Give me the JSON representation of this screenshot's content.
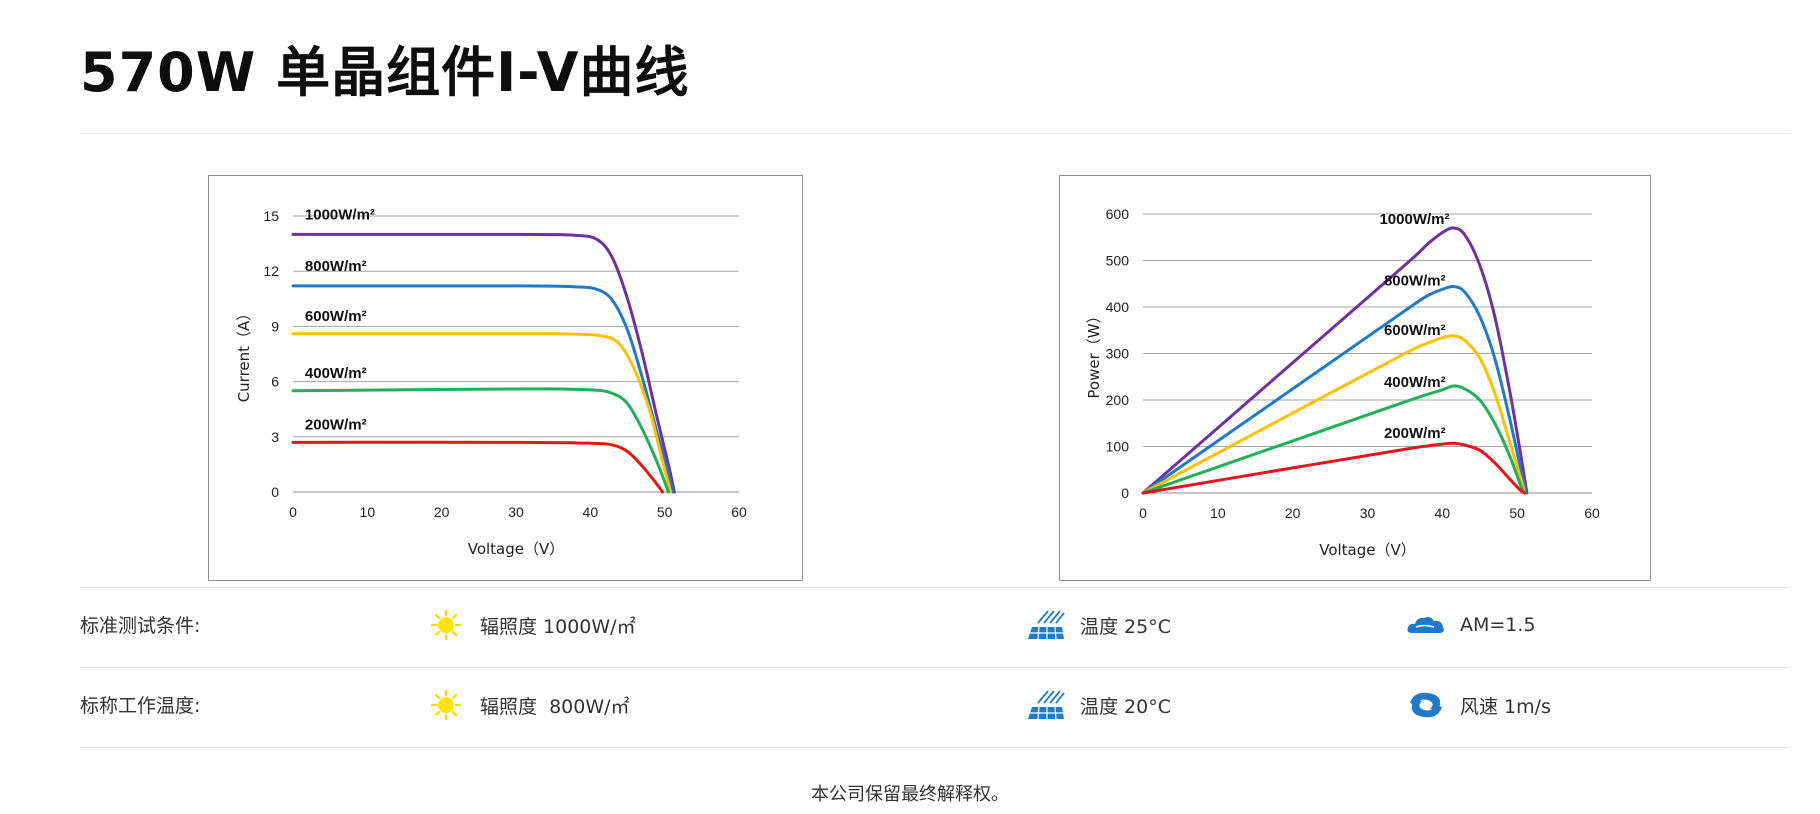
{
  "page": {
    "title": "570W 单晶组件I-V曲线",
    "footer": "本公司保留最终解释权。"
  },
  "conditions": [
    {
      "label": "标准测试条件:",
      "irradiance": "辐照度 1000W/㎡",
      "temperature": "温度 25°C",
      "third": "AM=1.5",
      "third_icon": "cloud-icon"
    },
    {
      "label": "标称工作温度:",
      "irradiance": "辐照度  800W/㎡",
      "temperature": "温度 20°C",
      "third": "风速 1m/s",
      "third_icon": "wind-icon"
    }
  ],
  "icons": {
    "irradiance": "sun-icon",
    "temperature": "solar-panel-icon"
  },
  "colors": {
    "1000W/m²": "#7030a0",
    "800W/m²": "#1f7ac9",
    "600W/m²": "#ffc000",
    "400W/m²": "#1fb058",
    "200W/m²": "#e8141a"
  },
  "chart_data": [
    {
      "type": "line",
      "xlabel": "Voltage（V）",
      "ylabel": "Current（A）",
      "xlim": [
        0,
        60
      ],
      "ylim": [
        0,
        15
      ],
      "xticks": [
        0,
        10,
        20,
        30,
        40,
        50,
        60
      ],
      "yticks": [
        0,
        3,
        6,
        9,
        12,
        15
      ],
      "grid": "horizontal",
      "series": [
        {
          "name": "1000W/m²",
          "points": [
            [
              0,
              14.0
            ],
            [
              30,
              14.0
            ],
            [
              38,
              13.95
            ],
            [
              41,
              13.7
            ],
            [
              43,
              12.7
            ],
            [
              45,
              10.5
            ],
            [
              47,
              7.5
            ],
            [
              49,
              4.0
            ],
            [
              50.5,
              1.5
            ],
            [
              51.3,
              0
            ]
          ]
        },
        {
          "name": "800W/m²",
          "points": [
            [
              0,
              11.2
            ],
            [
              30,
              11.2
            ],
            [
              38,
              11.15
            ],
            [
              41,
              11.0
            ],
            [
              43,
              10.4
            ],
            [
              45,
              8.8
            ],
            [
              47,
              6.2
            ],
            [
              49,
              3.2
            ],
            [
              50.5,
              1.0
            ],
            [
              51.1,
              0
            ]
          ]
        },
        {
          "name": "600W/m²",
          "points": [
            [
              0,
              8.6
            ],
            [
              30,
              8.6
            ],
            [
              38,
              8.58
            ],
            [
              42,
              8.45
            ],
            [
              44,
              8.0
            ],
            [
              46,
              6.6
            ],
            [
              48,
              4.4
            ],
            [
              49.5,
              2.0
            ],
            [
              50.8,
              0
            ]
          ]
        },
        {
          "name": "400W/m²",
          "points": [
            [
              0,
              5.5
            ],
            [
              30,
              5.6
            ],
            [
              40,
              5.55
            ],
            [
              43,
              5.35
            ],
            [
              45,
              4.8
            ],
            [
              47,
              3.4
            ],
            [
              49,
              1.6
            ],
            [
              50.5,
              0
            ]
          ]
        },
        {
          "name": "200W/m²",
          "points": [
            [
              0,
              2.7
            ],
            [
              30,
              2.7
            ],
            [
              40,
              2.65
            ],
            [
              43,
              2.55
            ],
            [
              45,
              2.2
            ],
            [
              47,
              1.4
            ],
            [
              49,
              0.4
            ],
            [
              49.7,
              0
            ]
          ]
        }
      ],
      "annotations": [
        {
          "text": "1000W/m²",
          "x": 1.6,
          "y": 14.8
        },
        {
          "text": "800W/m²",
          "x": 1.6,
          "y": 12.0
        },
        {
          "text": "600W/m²",
          "x": 1.6,
          "y": 9.3
        },
        {
          "text": "400W/m²",
          "x": 1.6,
          "y": 6.2
        },
        {
          "text": "200W/m²",
          "x": 1.6,
          "y": 3.4
        }
      ]
    },
    {
      "type": "line",
      "xlabel": "Voltage（V）",
      "ylabel": "Power（W）",
      "xlim": [
        0,
        60
      ],
      "ylim": [
        0,
        600
      ],
      "xticks": [
        0,
        10,
        20,
        30,
        40,
        50,
        60
      ],
      "yticks": [
        0,
        100,
        200,
        300,
        400,
        500,
        600
      ],
      "grid": "horizontal",
      "series": [
        {
          "name": "1000W/m²",
          "points": [
            [
              0,
              0
            ],
            [
              20,
              280
            ],
            [
              35,
              490
            ],
            [
              38,
              535
            ],
            [
              40,
              560
            ],
            [
              41.5,
              570
            ],
            [
              43,
              555
            ],
            [
              45,
              490
            ],
            [
              47,
              380
            ],
            [
              49,
              220
            ],
            [
              50.5,
              80
            ],
            [
              51.3,
              0
            ]
          ]
        },
        {
          "name": "800W/m²",
          "points": [
            [
              0,
              0
            ],
            [
              20,
              224
            ],
            [
              35,
              392
            ],
            [
              38,
              424
            ],
            [
              40,
              438
            ],
            [
              41.5,
              444
            ],
            [
              43,
              432
            ],
            [
              45,
              380
            ],
            [
              47,
              290
            ],
            [
              49,
              160
            ],
            [
              50.5,
              50
            ],
            [
              51.2,
              0
            ]
          ]
        },
        {
          "name": "600W/m²",
          "points": [
            [
              0,
              0
            ],
            [
              20,
              172
            ],
            [
              35,
              300
            ],
            [
              38,
              322
            ],
            [
              40,
              334
            ],
            [
              41.5,
              338
            ],
            [
              43,
              328
            ],
            [
              45,
              290
            ],
            [
              47,
              215
            ],
            [
              49,
              110
            ],
            [
              50.5,
              30
            ],
            [
              51,
              0
            ]
          ]
        },
        {
          "name": "400W/m²",
          "points": [
            [
              0,
              0
            ],
            [
              20,
              112
            ],
            [
              35,
              196
            ],
            [
              38,
              212
            ],
            [
              40,
              222
            ],
            [
              41.5,
              230
            ],
            [
              43,
              224
            ],
            [
              45,
              200
            ],
            [
              47,
              150
            ],
            [
              49,
              80
            ],
            [
              50.5,
              15
            ],
            [
              51,
              0
            ]
          ]
        },
        {
          "name": "200W/m²",
          "points": [
            [
              0,
              0
            ],
            [
              20,
              54
            ],
            [
              35,
              94
            ],
            [
              38,
              101
            ],
            [
              40,
              105
            ],
            [
              41.5,
              107
            ],
            [
              43,
              103
            ],
            [
              45,
              92
            ],
            [
              47,
              65
            ],
            [
              49,
              30
            ],
            [
              50.5,
              5
            ],
            [
              51,
              0
            ]
          ]
        }
      ],
      "annotations": [
        {
          "text": "1000W/m²",
          "x": 31.6,
          "y": 578
        },
        {
          "text": "800W/m²",
          "x": 32.2,
          "y": 446
        },
        {
          "text": "600W/m²",
          "x": 32.2,
          "y": 340
        },
        {
          "text": "400W/m²",
          "x": 32.2,
          "y": 228
        },
        {
          "text": "200W/m²",
          "x": 32.2,
          "y": 118
        }
      ]
    }
  ]
}
